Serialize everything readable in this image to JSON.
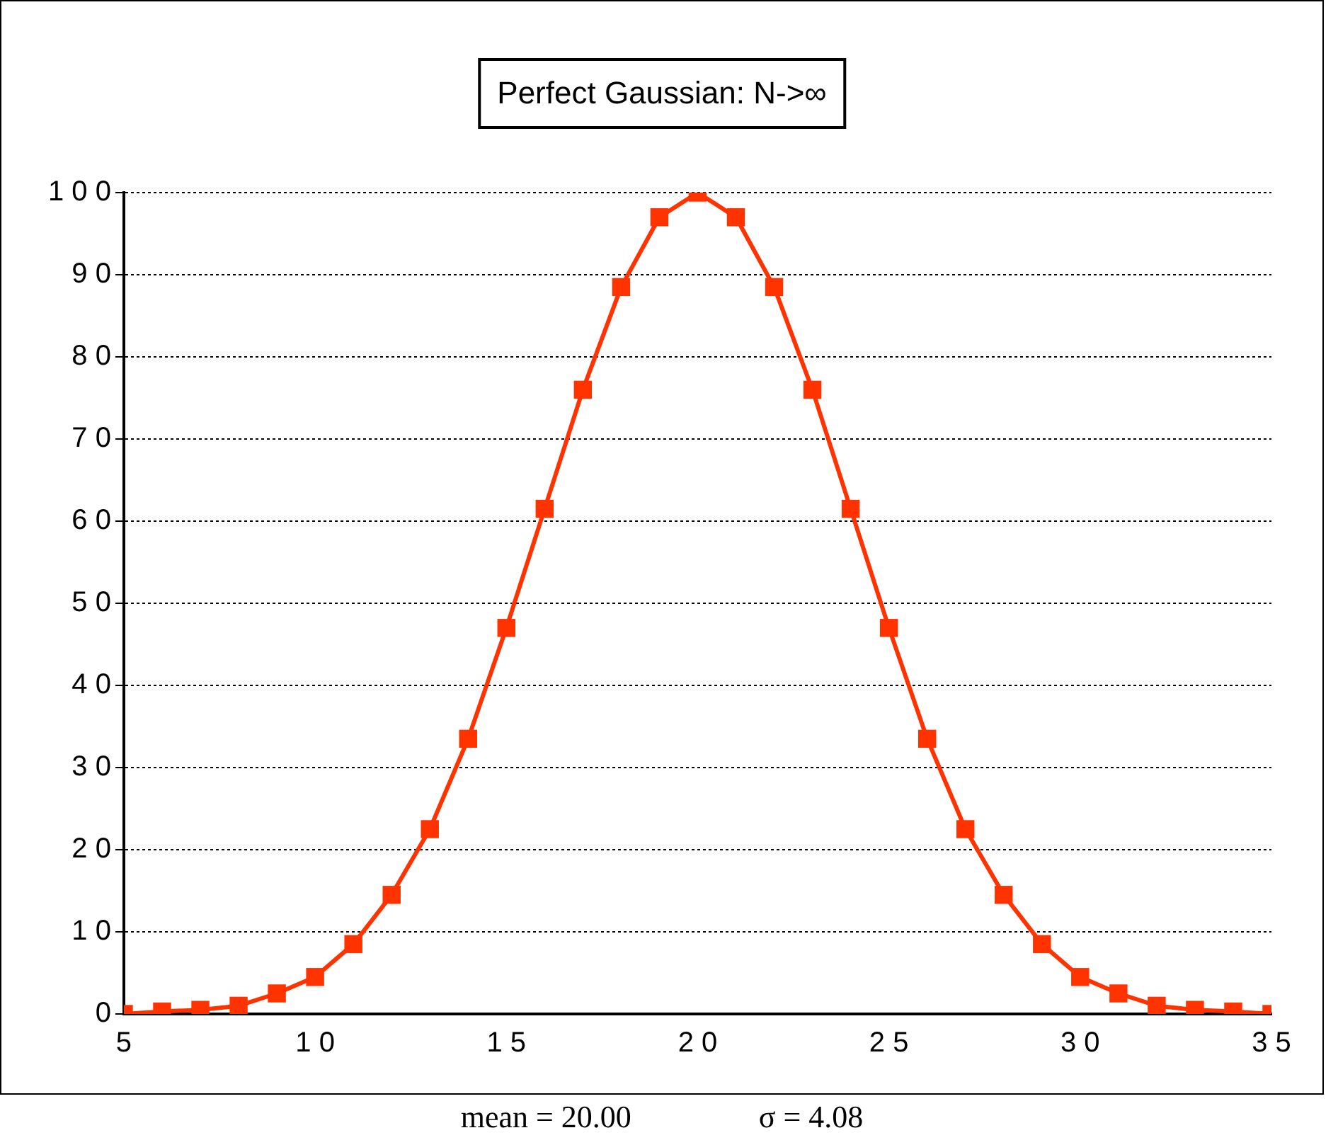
{
  "chart_data": {
    "type": "line",
    "title": "Perfect  Gaussian:  N->∞",
    "x": [
      5,
      6,
      7,
      8,
      9,
      10,
      11,
      12,
      13,
      14,
      15,
      16,
      17,
      18,
      19,
      20,
      21,
      22,
      23,
      24,
      25,
      26,
      27,
      28,
      29,
      30,
      31,
      32,
      33,
      34,
      35
    ],
    "series": [
      {
        "color": "#ff3300",
        "values": [
          0,
          0.3,
          0.5,
          1,
          2.5,
          4.5,
          8.5,
          14.5,
          22.5,
          33.5,
          47,
          61.5,
          76,
          88.5,
          97,
          100,
          97,
          88.5,
          76,
          61.5,
          47,
          33.5,
          22.5,
          14.5,
          8.5,
          4.5,
          2.5,
          1,
          0.5,
          0.3,
          0
        ]
      }
    ],
    "xlim": [
      5,
      35
    ],
    "xticks": [
      5,
      10,
      15,
      20,
      25,
      30,
      35
    ],
    "ylim": [
      0,
      100
    ],
    "yticks": [
      0,
      10,
      20,
      30,
      40,
      50,
      60,
      70,
      80,
      90,
      100
    ],
    "grid": "y",
    "legend": false,
    "marker": "square",
    "line_style": "solid",
    "annotations": [
      "mean = 20.00",
      "σ = 4.08"
    ]
  }
}
